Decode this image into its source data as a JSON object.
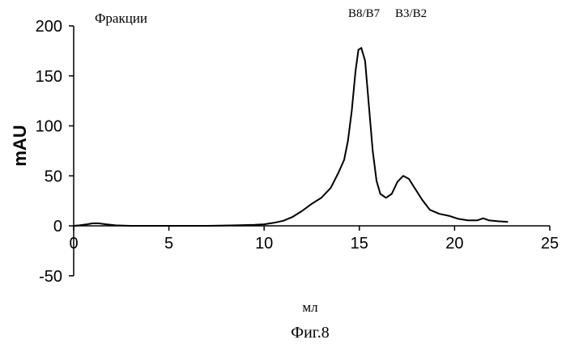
{
  "chart_data": {
    "type": "line",
    "title": "",
    "xlabel": "мл",
    "ylabel": "mAU",
    "xlim": [
      0,
      25
    ],
    "ylim": [
      -50,
      200
    ],
    "xticks": [
      0,
      5,
      10,
      15,
      20,
      25
    ],
    "yticks": [
      -50,
      0,
      50,
      100,
      150,
      200
    ],
    "xtick_labels": [
      "0",
      "5",
      "10",
      "15",
      "20",
      "25"
    ],
    "ytick_labels": [
      "-50",
      "0",
      "50",
      "100",
      "150",
      "200"
    ],
    "grid": false,
    "annotations": [
      {
        "text": "Фракции"
      },
      {
        "text": "B8/B7",
        "x": 15.0
      },
      {
        "text": "B3/B2",
        "x": 17.5
      }
    ],
    "caption": "Фиг.8",
    "series": [
      {
        "color": "#000000",
        "points": [
          [
            0,
            0
          ],
          [
            0.3,
            0.5
          ],
          [
            0.7,
            1.5
          ],
          [
            1.0,
            2.5
          ],
          [
            1.3,
            2.5
          ],
          [
            1.7,
            1.5
          ],
          [
            2.2,
            0.5
          ],
          [
            3,
            0
          ],
          [
            5,
            0
          ],
          [
            7,
            0
          ],
          [
            8.5,
            0.5
          ],
          [
            9.5,
            1
          ],
          [
            10,
            1.5
          ],
          [
            10.5,
            3
          ],
          [
            11,
            5
          ],
          [
            11.5,
            9
          ],
          [
            12,
            15
          ],
          [
            12.5,
            22
          ],
          [
            13,
            28
          ],
          [
            13.5,
            38
          ],
          [
            13.9,
            53
          ],
          [
            14.2,
            66
          ],
          [
            14.4,
            85
          ],
          [
            14.6,
            115
          ],
          [
            14.8,
            155
          ],
          [
            14.95,
            176
          ],
          [
            15.1,
            178
          ],
          [
            15.3,
            165
          ],
          [
            15.5,
            120
          ],
          [
            15.7,
            75
          ],
          [
            15.9,
            45
          ],
          [
            16.1,
            32
          ],
          [
            16.4,
            28
          ],
          [
            16.7,
            32
          ],
          [
            17.0,
            44
          ],
          [
            17.3,
            50
          ],
          [
            17.6,
            47
          ],
          [
            17.9,
            38
          ],
          [
            18.3,
            26
          ],
          [
            18.7,
            16
          ],
          [
            19.2,
            12
          ],
          [
            19.7,
            10
          ],
          [
            20.2,
            7
          ],
          [
            20.7,
            5.5
          ],
          [
            21.2,
            5.5
          ],
          [
            21.5,
            7.5
          ],
          [
            21.8,
            5.5
          ],
          [
            22.3,
            4.5
          ],
          [
            22.8,
            4
          ]
        ]
      }
    ]
  }
}
